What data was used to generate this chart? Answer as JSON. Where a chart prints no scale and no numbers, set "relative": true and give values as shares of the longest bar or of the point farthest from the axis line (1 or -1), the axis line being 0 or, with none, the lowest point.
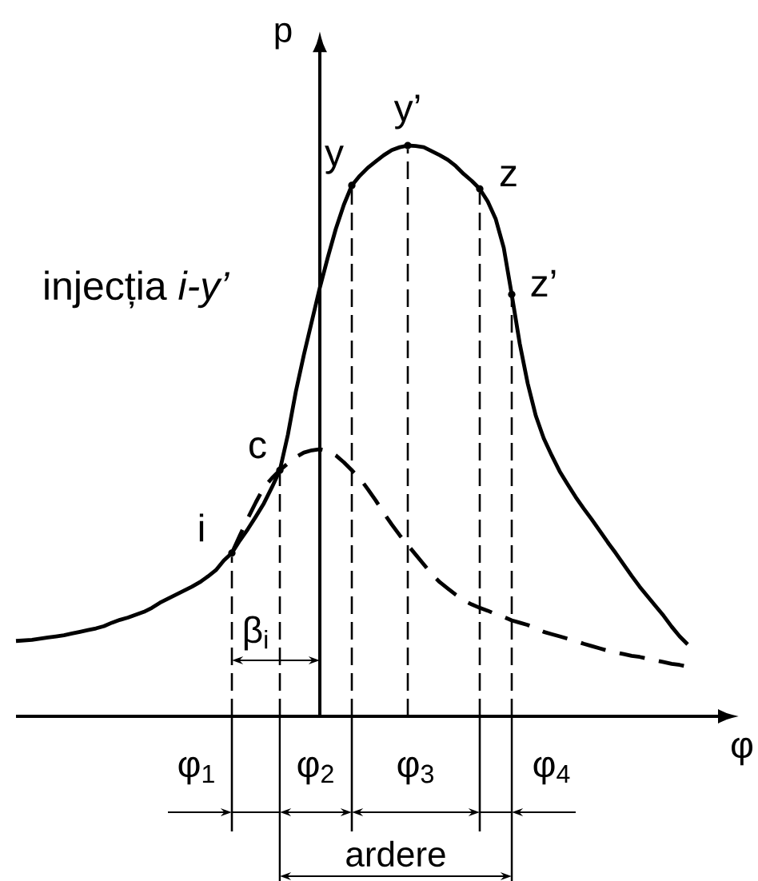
{
  "chart_data": {
    "type": "line",
    "relative": true,
    "xlabel": "φ",
    "ylabel": "p",
    "grid": "x",
    "categories": [
      null,
      null,
      null,
      null,
      null,
      null,
      null,
      null,
      null,
      null,
      null,
      null,
      null,
      null,
      null,
      null,
      null,
      null,
      null,
      null,
      null,
      null,
      null,
      null,
      null,
      null,
      null,
      null,
      null,
      null,
      null,
      null,
      null,
      null,
      null,
      null,
      null,
      null,
      null,
      null,
      null,
      null,
      null,
      null,
      null,
      null,
      null,
      null,
      null,
      null,
      null,
      null,
      null,
      null,
      null,
      null,
      null,
      null,
      null,
      null,
      null,
      null,
      null,
      null,
      null,
      null,
      null,
      null,
      null,
      null,
      null,
      null,
      null,
      null,
      null,
      null,
      null,
      null,
      null,
      null,
      null,
      null,
      null,
      null,
      null
    ],
    "series": [
      {
        "color": "#000000",
        "line_style": "solid",
        "values": [
          0.132,
          0.133,
          0.134,
          0.136,
          0.138,
          0.14,
          0.142,
          0.145,
          0.148,
          0.151,
          0.154,
          0.158,
          0.164,
          0.169,
          0.173,
          0.178,
          0.183,
          0.19,
          0.199,
          0.206,
          0.213,
          0.22,
          0.227,
          0.235,
          0.245,
          0.256,
          0.273,
          0.286,
          0.308,
          0.328,
          0.35,
          0.373,
          0.401,
          0.431,
          0.493,
          0.569,
          0.633,
          0.692,
          0.751,
          0.804,
          0.854,
          0.896,
          0.93,
          0.947,
          0.961,
          0.972,
          0.983,
          0.992,
          0.997,
          1,
          0.999,
          0.997,
          0.99,
          0.983,
          0.975,
          0.964,
          0.95,
          0.938,
          0.924,
          0.902,
          0.871,
          0.821,
          0.739,
          0.653,
          0.583,
          0.527,
          0.487,
          0.457,
          0.429,
          0.406,
          0.384,
          0.364,
          0.345,
          0.325,
          0.305,
          0.286,
          0.266,
          0.246,
          0.227,
          0.21,
          0.193,
          0.176,
          0.157,
          0.14,
          0.126
        ]
      },
      {
        "color": "#000000",
        "line_style": "dashed",
        "values": [
          null,
          null,
          null,
          null,
          null,
          null,
          null,
          null,
          null,
          null,
          null,
          null,
          null,
          null,
          null,
          null,
          null,
          null,
          null,
          null,
          null,
          null,
          null,
          null,
          null,
          null,
          null,
          0.286,
          0.317,
          0.347,
          0.375,
          0.401,
          0.417,
          0.431,
          0.443,
          0.454,
          0.462,
          0.466,
          0.468,
          0.465,
          0.457,
          0.445,
          0.431,
          0.417,
          0.398,
          0.378,
          0.356,
          0.336,
          0.317,
          0.3,
          0.283,
          0.266,
          0.249,
          0.235,
          0.224,
          0.213,
          0.203,
          0.196,
          0.19,
          0.185,
          0.179,
          0.174,
          0.168,
          0.164,
          0.16,
          0.154,
          0.148,
          0.144,
          0.14,
          0.136,
          0.132,
          0.127,
          0.123,
          0.119,
          0.115,
          0.112,
          0.109,
          0.106,
          0.104,
          0.101,
          0.098,
          0.095,
          0.092,
          0.09,
          0.087
        ]
      }
    ],
    "annotations": [
      "injecția *i-y’*",
      "i",
      "c",
      "y",
      "y’",
      "z",
      "z’",
      "β$_{i}$",
      "φ$_{1}$",
      "φ$_{2}$",
      "φ$_{3}$",
      "φ$_{4}$",
      "ardere"
    ]
  }
}
